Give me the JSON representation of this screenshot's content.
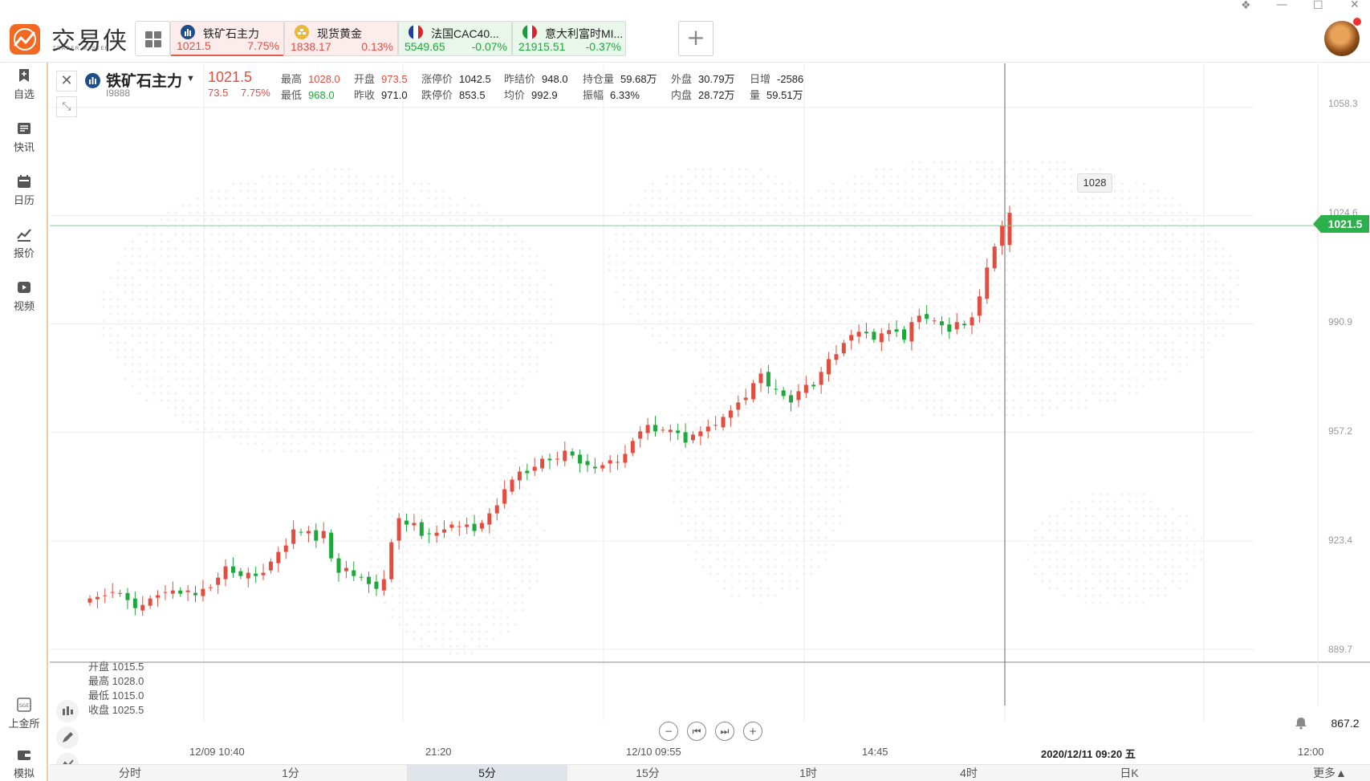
{
  "app": {
    "logo_text": "交易侠",
    "logo_sub": "TRADER MASTER"
  },
  "tabs": [
    {
      "name": "铁矿石主力",
      "price": "1021.5",
      "pct": "7.75%",
      "trend": "up",
      "active": true,
      "icon": "bar-chart-icon"
    },
    {
      "name": "现货黄金",
      "price": "1838.17",
      "pct": "0.13%",
      "trend": "up",
      "active": false,
      "icon": "gold-icon"
    },
    {
      "name": "法国CAC40...",
      "price": "5549.65",
      "pct": "-0.07%",
      "trend": "down",
      "active": false,
      "icon": "france-flag-icon"
    },
    {
      "name": "意大利富时MI...",
      "price": "21915.51",
      "pct": "-0.37%",
      "trend": "down",
      "active": false,
      "icon": "italy-flag-icon"
    }
  ],
  "add_tab_label": "+",
  "sidebar": {
    "top": [
      {
        "label": "自选",
        "icon": "bookmark-icon"
      },
      {
        "label": "快讯",
        "icon": "news-icon"
      },
      {
        "label": "日历",
        "icon": "calendar-icon"
      },
      {
        "label": "报价",
        "icon": "quote-icon"
      },
      {
        "label": "视频",
        "icon": "video-icon"
      }
    ],
    "bottom": [
      {
        "label": "上金所",
        "icon": "sge-icon"
      },
      {
        "label": "模拟",
        "icon": "wallet-icon"
      }
    ]
  },
  "symbol": {
    "name": "铁矿石主力",
    "code": "I9888",
    "price": "1021.5",
    "change": "73.5",
    "pct": "7.75%"
  },
  "stats": {
    "high_label": "最高",
    "high": "1028.0",
    "low_label": "最低",
    "low": "968.0",
    "open_label": "开盘",
    "open": "973.5",
    "prev_close_label": "昨收",
    "prev_close": "971.0",
    "limit_up_label": "涨停价",
    "limit_up": "1042.5",
    "limit_down_label": "跌停价",
    "limit_down": "853.5",
    "prev_settle_label": "昨结价",
    "prev_settle": "948.0",
    "avg_label": "均价",
    "avg": "992.9",
    "open_interest_label": "持仓量",
    "open_interest": "59.68万",
    "amplitude_label": "振幅",
    "amplitude": "6.33%",
    "outer_label": "外盘",
    "outer": "30.79万",
    "inner_label": "内盘",
    "inner": "28.72万",
    "daily_inc_label": "日增",
    "daily_inc": "-2586",
    "volume_label": "量",
    "volume": "59.51万"
  },
  "ohlc_tooltip": {
    "open": "开盘 1015.5",
    "high": "最高 1028.0",
    "low": "最低 1015.0",
    "close": "收盘 1025.5"
  },
  "hover_value": "1028",
  "current_price_tag": "1021.5",
  "low_price_tag": "867.2",
  "periods": [
    {
      "label": "分时",
      "active": false
    },
    {
      "label": "1分",
      "active": false
    },
    {
      "label": "5分",
      "active": true
    },
    {
      "label": "15分",
      "active": false
    },
    {
      "label": "1时",
      "active": false
    },
    {
      "label": "4时",
      "active": false
    },
    {
      "label": "日K",
      "active": false
    },
    {
      "label": "更多▲",
      "active": false
    }
  ],
  "colors": {
    "up": "#e34d3f",
    "down": "#1fa83a",
    "accent": "#f26a22"
  },
  "chart_data": {
    "type": "candlestick",
    "y_ticks": [
      1058.3,
      1024.6,
      990.9,
      957.2,
      923.4,
      889.7
    ],
    "x_ticks": [
      "12/09 10:40",
      "21:20",
      "12/10 09:55",
      "14:45",
      "2020/12/11 09:20 五",
      "12:00"
    ],
    "ylim": [
      867.2,
      1062
    ],
    "grid": true,
    "last_price_line": 1021.5,
    "crosshair_label": "2020/12/11 09:20 五",
    "closes": [
      905.5,
      906.0,
      906.5,
      907.5,
      907.2,
      905.0,
      902.5,
      903.5,
      905.5,
      906.5,
      907.5,
      908.0,
      907.0,
      908.0,
      906.5,
      908.5,
      909.0,
      912.0,
      915.5,
      913.5,
      912.5,
      913.5,
      912.5,
      913.5,
      917.0,
      920.0,
      922.0,
      927.0,
      926.0,
      926.5,
      923.5,
      926.5,
      918.0,
      913.5,
      915.0,
      912.5,
      912.0,
      910.0,
      908.5,
      911.5,
      923.0,
      930.5,
      928.5,
      929.0,
      925.0,
      925.5,
      926.0,
      927.0,
      928.5,
      928.0,
      928.5,
      926.5,
      929.0,
      932.0,
      934.5,
      939.5,
      942.5,
      945.0,
      944.5,
      946.5,
      949.0,
      948.5,
      949.0,
      951.5,
      950.0,
      947.5,
      947.0,
      946.0,
      947.0,
      948.5,
      948.0,
      950.5,
      954.5,
      957.5,
      959.5,
      957.5,
      958.0,
      958.0,
      957.0,
      954.0,
      956.5,
      957.5,
      959.0,
      959.5,
      962.0,
      964.0,
      966.5,
      968.0,
      972.5,
      975.5,
      971.5,
      970.5,
      968.5,
      966.5,
      970.0,
      972.0,
      971.5,
      976.0,
      980.0,
      981.5,
      985.0,
      987.5,
      988.5,
      988.0,
      986.0,
      988.0,
      989.0,
      988.5,
      986.0,
      991.5,
      993.5,
      992.5,
      992.0,
      990.5,
      988.5,
      991.5,
      990.5,
      993.0,
      999.5,
      1008.5,
      1015.0,
      1021.5,
      1025.5
    ]
  }
}
